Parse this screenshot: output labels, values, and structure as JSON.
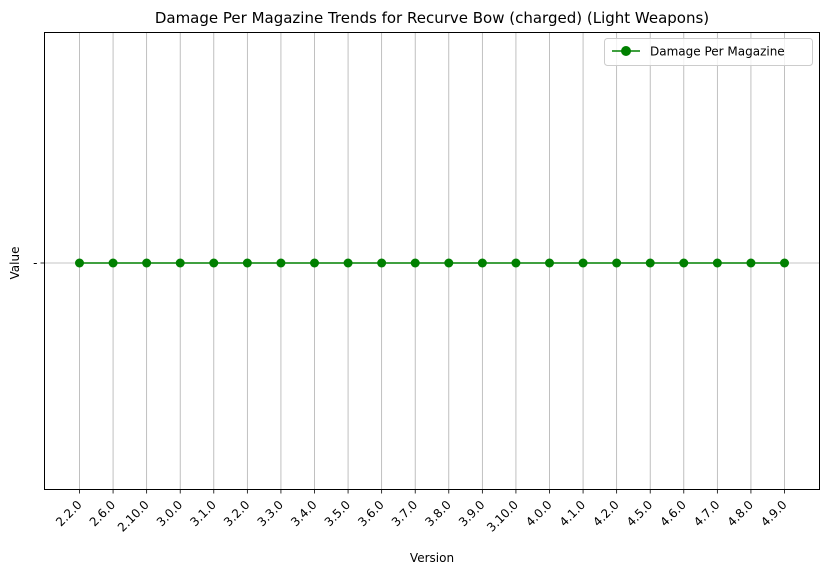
{
  "chart_data": {
    "type": "line",
    "title": "Damage Per Magazine Trends for Recurve Bow (charged) (Light Weapons)",
    "xlabel": "Version",
    "ylabel": "Value",
    "categories": [
      "2.2.0",
      "2.6.0",
      "2.10.0",
      "3.0.0",
      "3.1.0",
      "3.2.0",
      "3.3.0",
      "3.4.0",
      "3.5.0",
      "3.6.0",
      "3.7.0",
      "3.8.0",
      "3.9.0",
      "3.10.0",
      "4.0.0",
      "4.1.0",
      "4.2.0",
      "4.5.0",
      "4.6.0",
      "4.7.0",
      "4.8.0",
      "4.9.0"
    ],
    "y_categories": [
      "-"
    ],
    "series": [
      {
        "name": "Damage Per Magazine",
        "color": "#008000",
        "marker": "circle",
        "values": [
          "-",
          "-",
          "-",
          "-",
          "-",
          "-",
          "-",
          "-",
          "-",
          "-",
          "-",
          "-",
          "-",
          "-",
          "-",
          "-",
          "-",
          "-",
          "-",
          "-",
          "-",
          "-"
        ]
      }
    ],
    "grid": true,
    "legend_position": "top-right",
    "x_tick_rotation_deg": 45
  }
}
